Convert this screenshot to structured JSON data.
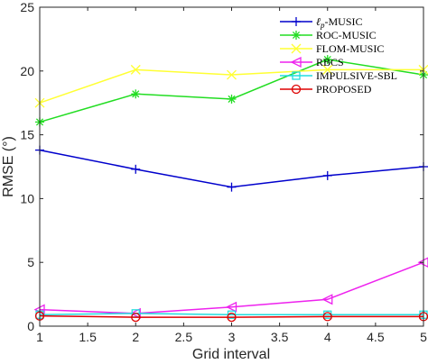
{
  "chart_data": {
    "type": "line",
    "xlabel": "Grid interval",
    "ylabel": "RMSE (°)",
    "xlim": [
      1,
      5
    ],
    "ylim": [
      0,
      25
    ],
    "xticks": [
      "1",
      "1.5",
      "2",
      "2.5",
      "3",
      "3.5",
      "4",
      "4.5",
      "5"
    ],
    "yticks": [
      "0",
      "5",
      "10",
      "15",
      "20",
      "25"
    ],
    "grid": false,
    "legend_position": "top-right",
    "x": [
      1,
      2,
      3,
      4,
      5
    ],
    "series": [
      {
        "name": "ℓp-MUSIC",
        "legend_main": "ℓ",
        "legend_sub": "p",
        "legend_rest": "-MUSIC",
        "color": "#0000cc",
        "marker": "plus",
        "values": [
          13.8,
          12.3,
          10.9,
          11.8,
          12.5
        ]
      },
      {
        "name": "ROC-MUSIC",
        "color": "#22dd22",
        "marker": "asterisk",
        "values": [
          16.0,
          18.2,
          17.8,
          20.9,
          19.7
        ]
      },
      {
        "name": "FLOM-MUSIC",
        "color": "#ffff33",
        "marker": "cross",
        "values": [
          17.5,
          20.1,
          19.7,
          20.1,
          20.1
        ]
      },
      {
        "name": "RBCS",
        "color": "#ee22ee",
        "marker": "triangle-left",
        "values": [
          1.3,
          1.0,
          1.5,
          2.1,
          5.0
        ]
      },
      {
        "name": "IMPULSIVE-SBL",
        "color": "#22dddd",
        "marker": "square",
        "values": [
          0.9,
          1.0,
          0.9,
          0.9,
          0.9
        ]
      },
      {
        "name": "PROPOSED",
        "color": "#dd0000",
        "marker": "circle",
        "values": [
          0.8,
          0.7,
          0.7,
          0.75,
          0.75
        ]
      }
    ]
  }
}
